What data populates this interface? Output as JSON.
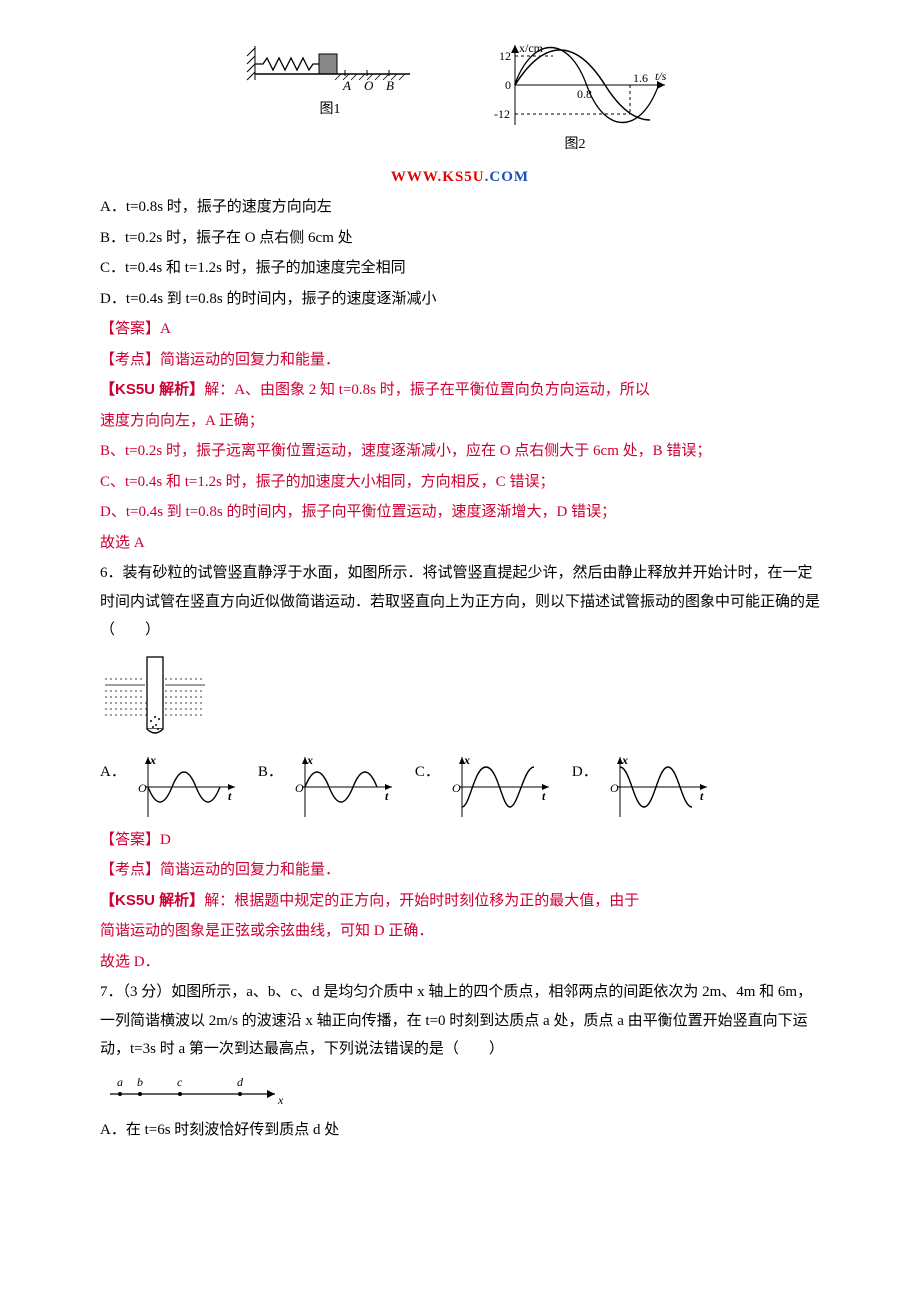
{
  "watermark": {
    "text": "WWW.KS5U.COM",
    "color_left": "#e60000",
    "color_right": "#1e4fb3"
  },
  "fig_top": {
    "left_caption": "图1",
    "right_caption": "图2",
    "graph": {
      "y_label": "x/cm",
      "x_label": "t/s",
      "y_ticks": [
        "12",
        "0",
        "-12"
      ],
      "x_ticks": [
        "0.8",
        "1.6"
      ],
      "curve_color": "#000",
      "axis_color": "#000"
    }
  },
  "q5_opts": {
    "A": "A．t=0.8s 时，振子的速度方向向左",
    "B": "B．t=0.2s 时，振子在 O 点右侧 6cm 处",
    "C": "C．t=0.4s 和 t=1.2s 时，振子的加速度完全相同",
    "D": "D．t=0.4s 到 t=0.8s 的时间内，振子的速度逐渐减小"
  },
  "q5_answer": "【答案】A",
  "q5_kaodian": "【考点】简谐运动的回复力和能量．",
  "q5_ks5u_label": "【KS5U 解析】",
  "q5_exp": {
    "pre": "解：A、由图象 2 知 t=0.8s 时，振子在平衡位置向负方向运动，所以",
    "l2": "速度方向向左，A 正确；",
    "B": "B、t=0.2s 时，振子远离平衡位置运动，速度逐渐减小，应在 O 点右侧大于 6cm 处，B 错误；",
    "C": "C、t=0.4s 和 t=1.2s 时，振子的加速度大小相同，方向相反，C 错误；",
    "D": "D、t=0.4s 到 t=0.8s 的时间内，振子向平衡位置运动，速度逐渐增大，D 错误；",
    "final": "故选 A"
  },
  "q6_stem": "6．装有砂粒的试管竖直静浮于水面，如图所示．将试管竖直提起少许，然后由静止释放并开始计时，在一定时间内试管在竖直方向近似做简谐运动．若取竖直向上为正方向，则以下描述试管振动的图象中可能正确的是（　　）",
  "q6_opts": {
    "A": "A．",
    "B": "B．",
    "C": "C．",
    "D": "D．"
  },
  "q6_answer": "【答案】D",
  "q6_kaodian": "【考点】简谐运动的回复力和能量．",
  "q6_ks5u_label": "【KS5U 解析】",
  "q6_exp": {
    "l1": "解：根据题中规定的正方向，开始时时刻位移为正的最大值，由于",
    "l2": "简谐运动的图象是正弦或余弦曲线，可知 D 正确．",
    "final": "故选 D．"
  },
  "q7_stem": "7．（3 分）如图所示，a、b、c、d 是均匀介质中 x 轴上的四个质点，相邻两点的间距依次为 2m、4m 和 6m，一列简谐横波以 2m/s 的波速沿 x 轴正向传播，在 t=0 时刻到达质点 a 处，质点 a 由平衡位置开始竖直向下运动，t=3s 时 a 第一次到达最高点，下列说法错误的是（　　）",
  "q7_axis": {
    "labels": [
      "a",
      "b",
      "c",
      "d",
      "x"
    ]
  },
  "q7_optA": "A．在 t=6s 时刻波恰好传到质点 d 处",
  "opt_axes": {
    "x_label": "t",
    "y_label": "x",
    "origin": "O"
  }
}
